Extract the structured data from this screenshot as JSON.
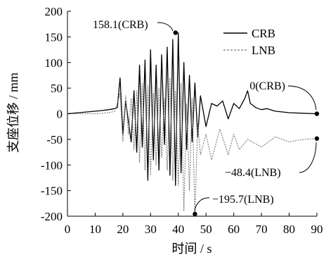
{
  "chart_data": {
    "type": "line",
    "xlabel": "时间 / s",
    "ylabel": "支座位移 / mm",
    "xlim": [
      0,
      90
    ],
    "ylim": [
      -200,
      200
    ],
    "xticks": [
      0,
      10,
      20,
      30,
      40,
      50,
      60,
      70,
      80,
      90
    ],
    "yticks": [
      200,
      150,
      100,
      50,
      0,
      -50,
      -100,
      -150,
      -200
    ],
    "xtick_labels": [
      "0",
      "10",
      "20",
      "30",
      "40",
      "50",
      "60",
      "70",
      "80",
      "90"
    ],
    "ytick_labels": [
      "200",
      "150",
      "100",
      "50",
      "0",
      "-50",
      "-100",
      "-150",
      "-200"
    ],
    "grid": false,
    "legend": {
      "position": "top-right",
      "entries": [
        {
          "label": "CRB",
          "style": "solid",
          "color": "#000000"
        },
        {
          "label": "LNB",
          "style": "dashed",
          "color": "#7a7a7a"
        }
      ]
    },
    "series": [
      {
        "name": "CRB",
        "color": "#000000",
        "x": [
          0,
          4,
          8,
          12,
          15,
          17,
          18,
          19,
          20,
          21,
          22,
          23,
          24,
          25,
          26,
          27,
          28,
          29,
          30,
          31,
          32,
          33,
          34,
          35,
          36,
          37,
          38,
          39,
          40,
          41,
          42,
          43,
          44,
          45,
          46,
          47,
          48,
          50,
          52,
          54,
          56,
          58,
          60,
          62,
          64,
          65,
          66,
          68,
          70,
          72,
          75,
          80,
          85,
          90
        ],
        "y": [
          0,
          2,
          4,
          6,
          8,
          10,
          12,
          70,
          -40,
          25,
          -15,
          -55,
          45,
          -75,
          95,
          -65,
          105,
          -130,
          125,
          -90,
          95,
          -110,
          115,
          -60,
          130,
          -120,
          145,
          -140,
          158.1,
          -115,
          100,
          -70,
          75,
          -55,
          60,
          -45,
          35,
          -25,
          20,
          15,
          25,
          -10,
          20,
          10,
          30,
          45,
          20,
          12,
          8,
          10,
          5,
          2,
          1,
          0
        ]
      },
      {
        "name": "LNB",
        "color": "#7a7a7a",
        "x": [
          0,
          10,
          15,
          17,
          18,
          19,
          20,
          21,
          22,
          23,
          24,
          25,
          26,
          27,
          28,
          29,
          30,
          31,
          32,
          33,
          34,
          35,
          36,
          37,
          38,
          39,
          40,
          41,
          42,
          43,
          44,
          45,
          46,
          47,
          48,
          50,
          52,
          55,
          58,
          60,
          62,
          65,
          70,
          75,
          80,
          85,
          90
        ],
        "y": [
          0,
          0,
          2,
          5,
          20,
          40,
          -55,
          35,
          -40,
          30,
          -70,
          45,
          -95,
          60,
          -110,
          55,
          -120,
          40,
          -100,
          50,
          -85,
          30,
          -110,
          70,
          -130,
          45,
          -140,
          60,
          -190,
          20,
          -150,
          30,
          -195.7,
          -20,
          -80,
          -40,
          -90,
          -30,
          -80,
          -40,
          -70,
          -50,
          -65,
          -45,
          -55,
          -50,
          -48.4
        ]
      }
    ],
    "annotations": [
      {
        "label": "158.1(CRB)",
        "x": 39,
        "y": 158.1
      },
      {
        "label": "0(CRB)",
        "x": 90,
        "y": 0
      },
      {
        "label": "−48.4(LNB)",
        "x": 90,
        "y": -48.4
      },
      {
        "label": "−195.7(LNB)",
        "x": 46,
        "y": -195.7
      }
    ]
  }
}
